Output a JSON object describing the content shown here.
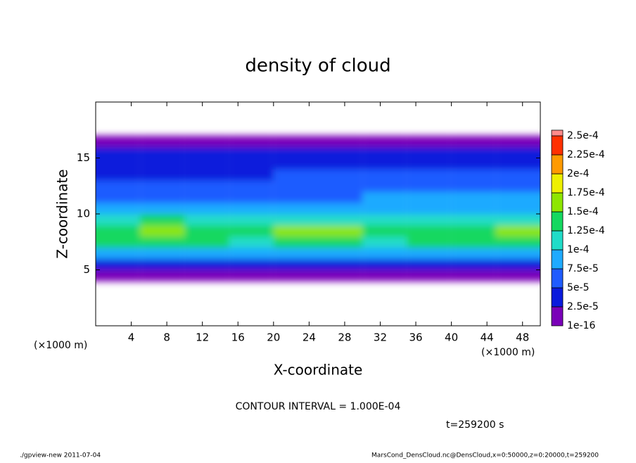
{
  "chart_data": {
    "type": "contour",
    "title": "density of cloud",
    "x_label": "X-coordinate",
    "y_label": "Z-coordinate",
    "x_unit": "(×1000 m)",
    "contour_note": "CONTOUR INTERVAL = 1.000E-04",
    "time_note": "t=259200 s",
    "footer_left": "./gpview-new  2011-07-04",
    "footer_right": "MarsCond_DensCloud.nc@DensCloud,x=0:50000,z=0:20000,t=259200",
    "xlim": [
      0,
      50
    ],
    "ylim": [
      0,
      20
    ],
    "xticks": [
      4,
      8,
      12,
      16,
      20,
      24,
      28,
      32,
      36,
      40,
      44,
      48
    ],
    "yticks": [
      5,
      10,
      15
    ],
    "x": [
      2.5,
      7.5,
      12.5,
      17.5,
      22.5,
      27.5,
      32.5,
      37.5,
      42.5,
      47.5
    ],
    "z": [
      0.5,
      1.5,
      2.5,
      3.5,
      4.5,
      5.5,
      6.5,
      7.5,
      8.5,
      9.5,
      10.5,
      11.5,
      12.5,
      13.5,
      14.5,
      15.5,
      16.5,
      17.5,
      18.5,
      19.5
    ],
    "values": [
      [
        0,
        0,
        0,
        0,
        0,
        0,
        0,
        0,
        0,
        0
      ],
      [
        0,
        0,
        0,
        0,
        0,
        0,
        0,
        0,
        0,
        0
      ],
      [
        0,
        0,
        0,
        0,
        0,
        0,
        0,
        0,
        0,
        0
      ],
      [
        0,
        0,
        0,
        0,
        0,
        0,
        0,
        0,
        0,
        0
      ],
      [
        1e-05,
        1e-05,
        1e-05,
        1e-05,
        1e-05,
        1e-05,
        1e-05,
        1e-05,
        1e-05,
        1e-05
      ],
      [
        4e-05,
        4e-05,
        4e-05,
        4e-05,
        4e-05,
        4e-05,
        4e-05,
        4e-05,
        4e-05,
        4e-05
      ],
      [
        9e-05,
        9e-05,
        8.5e-05,
        9e-05,
        9.5e-05,
        9e-05,
        8.5e-05,
        9e-05,
        9e-05,
        9e-05
      ],
      [
        0.00013,
        0.00013,
        0.000125,
        0.00012,
        0.00013,
        0.000135,
        0.00012,
        0.000125,
        0.00013,
        0.000135
      ],
      [
        0.000145,
        0.00015,
        0.00014,
        0.000135,
        0.000155,
        0.00016,
        0.00014,
        0.000135,
        0.000145,
        0.00015
      ],
      [
        0.00012,
        0.000125,
        0.000115,
        0.00011,
        0.000115,
        0.00012,
        0.000115,
        0.00011,
        0.000115,
        0.00012
      ],
      [
        8.5e-05,
        8e-05,
        7.5e-05,
        8e-05,
        8.5e-05,
        9e-05,
        9e-05,
        9.5e-05,
        9.5e-05,
        9e-05
      ],
      [
        6e-05,
        6e-05,
        5.5e-05,
        6e-05,
        6.5e-05,
        7e-05,
        7.5e-05,
        8e-05,
        8e-05,
        7.5e-05
      ],
      [
        5e-05,
        5e-05,
        5e-05,
        5e-05,
        5.5e-05,
        5.5e-05,
        6e-05,
        7e-05,
        7e-05,
        6.5e-05
      ],
      [
        4.5e-05,
        4.5e-05,
        4.5e-05,
        4.5e-05,
        5e-05,
        5e-05,
        5e-05,
        5.5e-05,
        5.5e-05,
        5e-05
      ],
      [
        4e-05,
        4e-05,
        4e-05,
        4e-05,
        4e-05,
        4e-05,
        4e-05,
        4e-05,
        4e-05,
        4e-05
      ],
      [
        3e-05,
        3e-05,
        3e-05,
        3e-05,
        3e-05,
        3e-05,
        3e-05,
        3e-05,
        3e-05,
        3e-05
      ],
      [
        1e-05,
        1e-05,
        1e-05,
        1e-05,
        1e-05,
        1e-05,
        1e-05,
        1e-05,
        1e-05,
        1e-05
      ],
      [
        0,
        0,
        0,
        0,
        0,
        0,
        0,
        0,
        0,
        0
      ],
      [
        0,
        0,
        0,
        0,
        0,
        0,
        0,
        0,
        0,
        0
      ],
      [
        0,
        0,
        0,
        0,
        0,
        0,
        0,
        0,
        0,
        0
      ]
    ],
    "levels": [
      {
        "value": 1e-16,
        "label": "1e-16"
      },
      {
        "value": 2.5e-05,
        "label": "2.5e-5"
      },
      {
        "value": 5e-05,
        "label": "5e-5"
      },
      {
        "value": 7.5e-05,
        "label": "7.5e-5"
      },
      {
        "value": 0.0001,
        "label": "1e-4"
      },
      {
        "value": 0.000125,
        "label": "1.25e-4"
      },
      {
        "value": 0.00015,
        "label": "1.5e-4"
      },
      {
        "value": 0.000175,
        "label": "1.75e-4"
      },
      {
        "value": 0.0002,
        "label": "2e-4"
      },
      {
        "value": 0.000225,
        "label": "2.25e-4"
      },
      {
        "value": 0.00025,
        "label": "2.5e-4"
      }
    ],
    "colors": [
      "#7a00b8",
      "#0a1adc",
      "#1f5cff",
      "#1eaaff",
      "#20dcc8",
      "#14d860",
      "#8ee600",
      "#eef000",
      "#ff9a00",
      "#ff3000",
      "#ff8a8a"
    ]
  }
}
